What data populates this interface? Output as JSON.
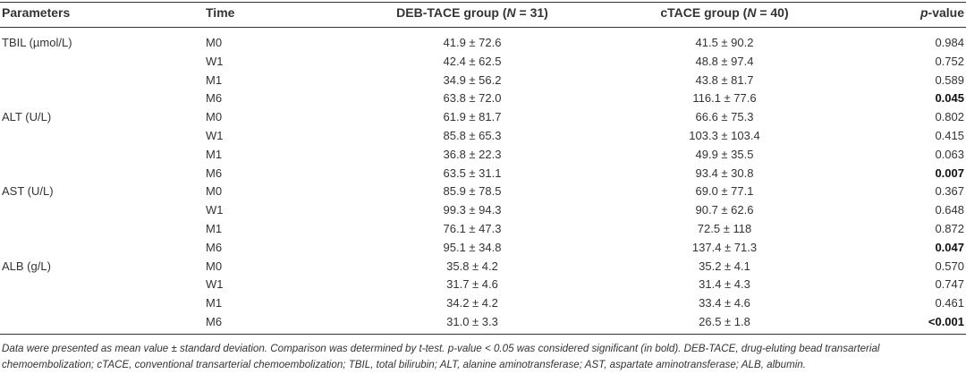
{
  "table": {
    "headers": {
      "parameters": "Parameters",
      "time": "Time",
      "deb_prefix": "DEB-TACE group (",
      "deb_n": "N",
      "deb_suffix": " = 31)",
      "ctace_prefix": "cTACE group (",
      "ctace_n": "N",
      "ctace_suffix": " = 40)",
      "pval_p": "p",
      "pval_suffix": "-value"
    },
    "rows": [
      {
        "param": "TBIL (µmol/L)",
        "time": "M0",
        "deb": "41.9 ± 72.6",
        "ctace": "41.5 ± 90.2",
        "p": "0.984",
        "bold": false
      },
      {
        "param": "",
        "time": "W1",
        "deb": "42.4 ± 62.5",
        "ctace": "48.8 ± 97.4",
        "p": "0.752",
        "bold": false
      },
      {
        "param": "",
        "time": "M1",
        "deb": "34.9 ± 56.2",
        "ctace": "43.8 ± 81.7",
        "p": "0.589",
        "bold": false
      },
      {
        "param": "",
        "time": "M6",
        "deb": "63.8 ± 72.0",
        "ctace": "116.1 ± 77.6",
        "p": "0.045",
        "bold": true
      },
      {
        "param": "ALT (U/L)",
        "time": "M0",
        "deb": "61.9 ± 81.7",
        "ctace": "66.6 ± 75.3",
        "p": "0.802",
        "bold": false
      },
      {
        "param": "",
        "time": "W1",
        "deb": "85.8 ± 65.3",
        "ctace": "103.3 ± 103.4",
        "p": "0.415",
        "bold": false
      },
      {
        "param": "",
        "time": "M1",
        "deb": "36.8 ± 22.3",
        "ctace": "49.9 ± 35.5",
        "p": "0.063",
        "bold": false
      },
      {
        "param": "",
        "time": "M6",
        "deb": "63.5 ± 31.1",
        "ctace": "93.4 ± 30.8",
        "p": "0.007",
        "bold": true
      },
      {
        "param": "AST (U/L)",
        "time": "M0",
        "deb": "85.9 ± 78.5",
        "ctace": "69.0 ± 77.1",
        "p": "0.367",
        "bold": false
      },
      {
        "param": "",
        "time": "W1",
        "deb": "99.3 ± 94.3",
        "ctace": "90.7 ± 62.6",
        "p": "0.648",
        "bold": false
      },
      {
        "param": "",
        "time": "M1",
        "deb": "76.1 ± 47.3",
        "ctace": "72.5 ± 118",
        "p": "0.872",
        "bold": false
      },
      {
        "param": "",
        "time": "M6",
        "deb": "95.1 ± 34.8",
        "ctace": "137.4 ± 71.3",
        "p": "0.047",
        "bold": true
      },
      {
        "param": "ALB (g/L)",
        "time": "M0",
        "deb": "35.8 ± 4.2",
        "ctace": "35.2 ± 4.1",
        "p": "0.570",
        "bold": false
      },
      {
        "param": "",
        "time": "W1",
        "deb": "31.7 ± 4.6",
        "ctace": "31.4 ± 4.3",
        "p": "0.747",
        "bold": false
      },
      {
        "param": "",
        "time": "M1",
        "deb": "34.2 ± 4.2",
        "ctace": "33.4 ± 4.6",
        "p": "0.461",
        "bold": false
      },
      {
        "param": "",
        "time": "M6",
        "deb": "31.0 ± 3.3",
        "ctace": "26.5 ± 1.8",
        "p": "<0.001",
        "bold": true
      }
    ]
  },
  "footnote": {
    "line1": "Data were presented as mean value ± standard deviation. Comparison was determined by t-test. p-value < 0.05 was considered significant (in bold). DEB-TACE, drug-eluting bead transarterial",
    "line2": "chemoembolization; cTACE, conventional transarterial chemoembolization; TBIL, total bilirubin; ALT, alanine aminotransferase; AST, aspartate aminotransferase; ALB, albumin."
  }
}
